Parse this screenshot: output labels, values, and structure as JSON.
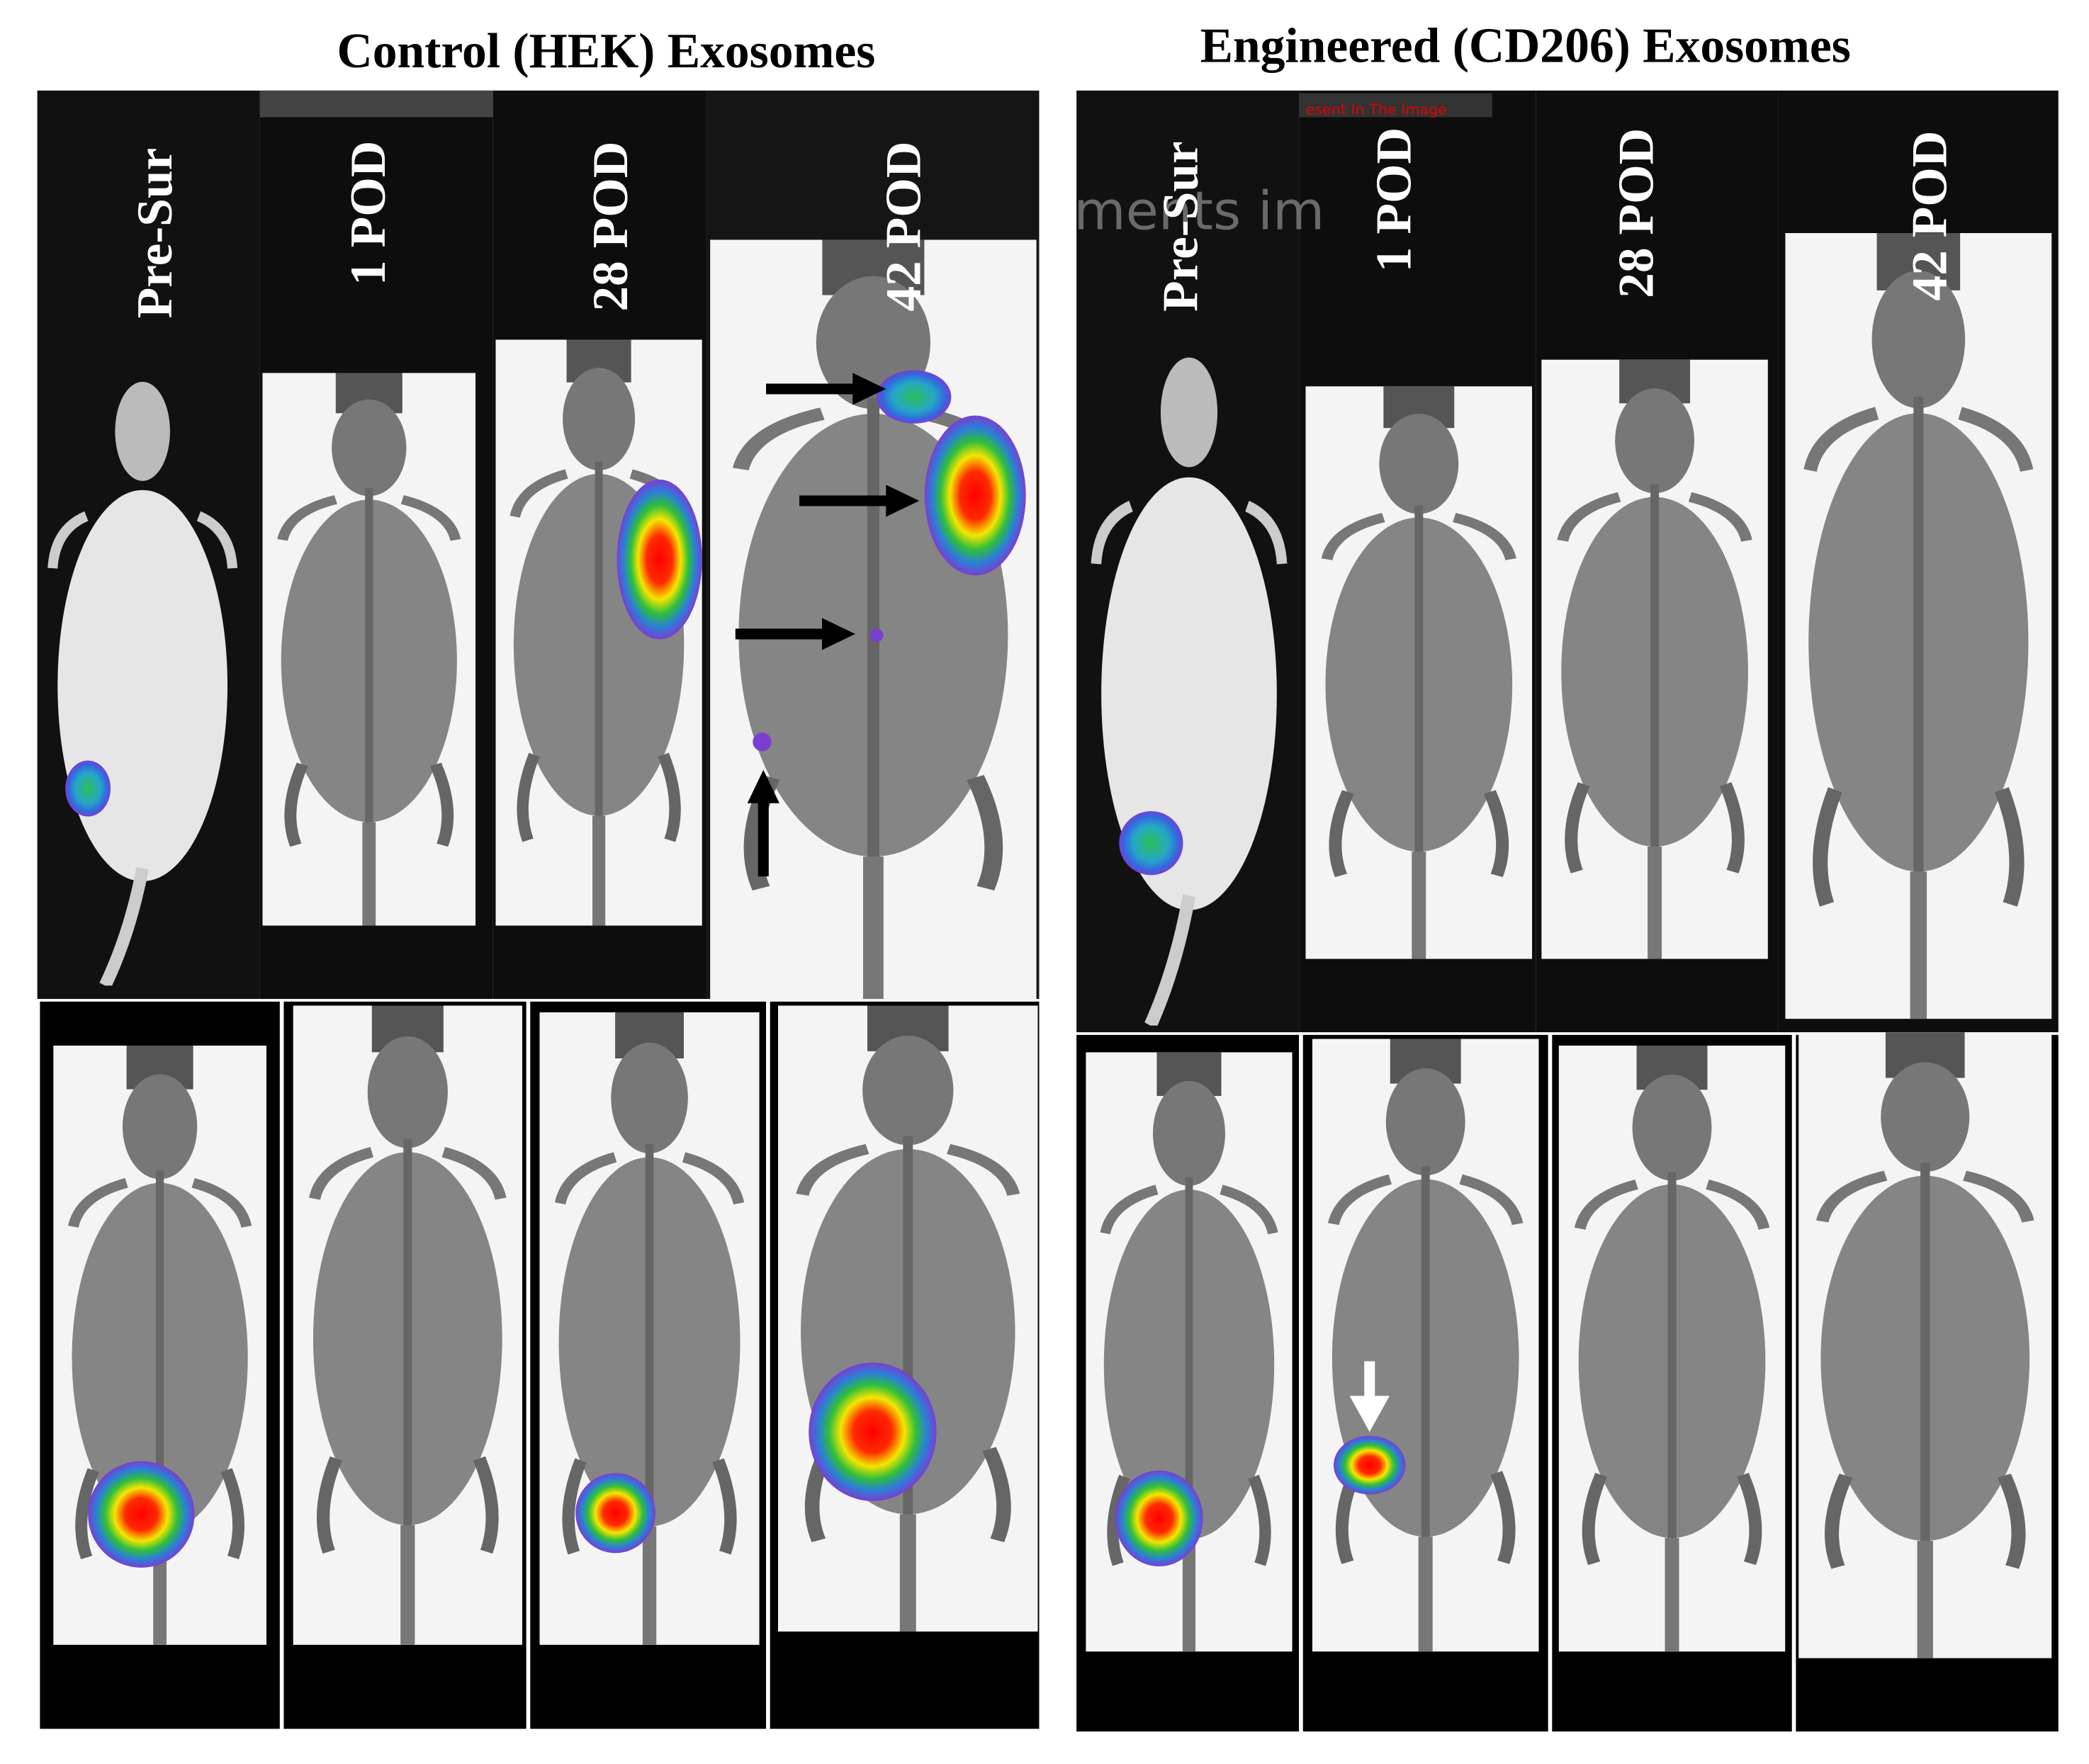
{
  "panels": [
    {
      "title": "Control (HEK) Exosomes",
      "columns": [
        "Pre-Sur",
        "1 POD",
        "28 POD",
        "42 POD"
      ]
    },
    {
      "title": "Engineered (CD206) Exosomes",
      "columns": [
        "Pre-Sur",
        "1 POD",
        "28 POD",
        "42 POD"
      ]
    }
  ],
  "artifacts": {
    "overlay_text": "esent In The Image",
    "watermark": "ments im"
  }
}
